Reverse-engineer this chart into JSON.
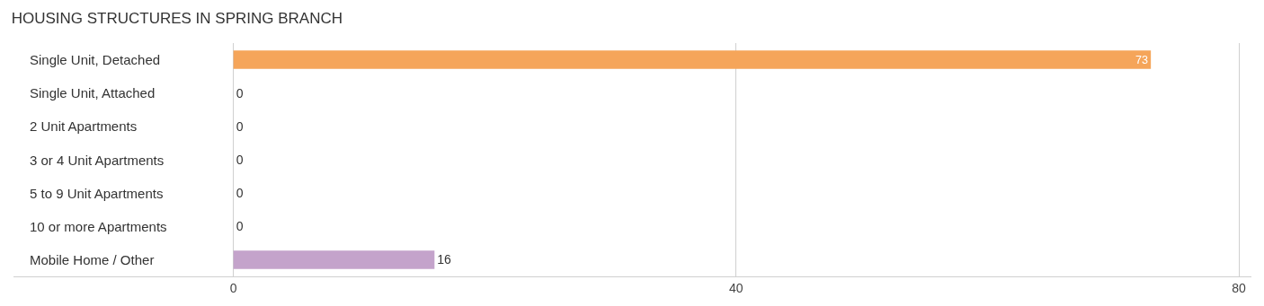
{
  "chart_data": {
    "type": "bar",
    "orientation": "horizontal",
    "title": "HOUSING STRUCTURES IN SPRING BRANCH",
    "categories": [
      "Single Unit, Detached",
      "Single Unit, Attached",
      "2 Unit Apartments",
      "3 or 4 Unit Apartments",
      "5 to 9 Unit Apartments",
      "10 or more Apartments",
      "Mobile Home / Other"
    ],
    "values": [
      73,
      0,
      0,
      0,
      0,
      0,
      16
    ],
    "colors": [
      "#f5a55a",
      "#f0a8a8",
      "#a9c8ec",
      "#a9c8ec",
      "#a9c8ec",
      "#a9c8ec",
      "#c4a3cb"
    ],
    "xlim": [
      -17.5,
      81
    ],
    "xticks": [
      0,
      40,
      80
    ],
    "grid": "x",
    "data_labels": true
  }
}
